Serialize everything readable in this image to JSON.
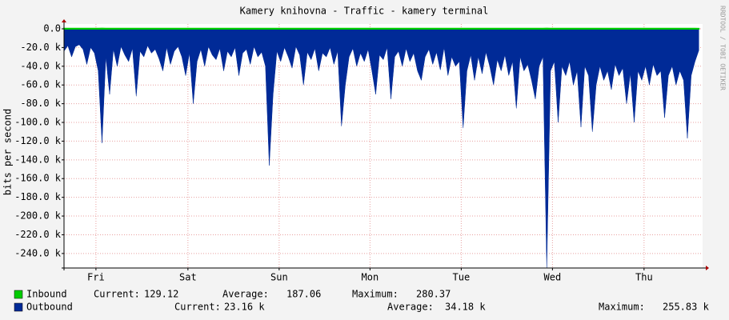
{
  "chart_data": {
    "type": "area",
    "title": "Kamery knihovna - Traffic - kamery terminal",
    "y_label": "bits per second",
    "watermark": "RRDTOOL / TOBI OETIKER",
    "xlim": [
      0,
      168
    ],
    "xticks": [
      {
        "value": 8.4,
        "label": "Fri"
      },
      {
        "value": 32.6,
        "label": "Sat"
      },
      {
        "value": 56.6,
        "label": "Sun"
      },
      {
        "value": 80.5,
        "label": "Mon"
      },
      {
        "value": 104.5,
        "label": "Tue"
      },
      {
        "value": 128.5,
        "label": "Wed"
      },
      {
        "value": 152.6,
        "label": "Thu"
      }
    ],
    "ylim": [
      -255500,
      0
    ],
    "yticks": [
      {
        "value": 0,
        "label": "0.0"
      },
      {
        "value": -20000,
        "label": "-20.0 k"
      },
      {
        "value": -40000,
        "label": "-40.0 k"
      },
      {
        "value": -60000,
        "label": "-60.0 k"
      },
      {
        "value": -80000,
        "label": "-80.0 k"
      },
      {
        "value": -100000,
        "label": "-100.0 k"
      },
      {
        "value": -120000,
        "label": "-120.0 k"
      },
      {
        "value": -140000,
        "label": "-140.0 k"
      },
      {
        "value": -160000,
        "label": "-160.0 k"
      },
      {
        "value": -180000,
        "label": "-180.0 k"
      },
      {
        "value": -200000,
        "label": "-200.0 k"
      },
      {
        "value": -220000,
        "label": "-220.0 k"
      },
      {
        "value": -240000,
        "label": "-240.0 k"
      }
    ],
    "grid": true,
    "x": [
      0,
      1,
      2,
      3,
      4,
      5,
      6,
      7,
      8,
      9,
      10,
      11,
      12,
      13,
      14,
      15,
      16,
      17,
      18,
      19,
      20,
      21,
      22,
      23,
      24,
      25,
      26,
      27,
      28,
      29,
      30,
      31,
      32,
      33,
      34,
      35,
      36,
      37,
      38,
      39,
      40,
      41,
      42,
      43,
      44,
      45,
      46,
      47,
      48,
      49,
      50,
      51,
      52,
      53,
      54,
      55,
      56,
      57,
      58,
      59,
      60,
      61,
      62,
      63,
      64,
      65,
      66,
      67,
      68,
      69,
      70,
      71,
      72,
      73,
      74,
      75,
      76,
      77,
      78,
      79,
      80,
      81,
      82,
      83,
      84,
      85,
      86,
      87,
      88,
      89,
      90,
      91,
      92,
      93,
      94,
      95,
      96,
      97,
      98,
      99,
      100,
      101,
      102,
      103,
      104,
      105,
      106,
      107,
      108,
      109,
      110,
      111,
      112,
      113,
      114,
      115,
      116,
      117,
      118,
      119,
      120,
      121,
      122,
      123,
      124,
      125,
      126,
      127,
      128,
      129,
      130,
      131,
      132,
      133,
      134,
      135,
      136,
      137,
      138,
      139,
      140,
      141,
      142,
      143,
      144,
      145,
      146,
      147,
      148,
      149,
      150,
      151,
      152,
      153,
      154,
      155,
      156,
      157,
      158,
      159,
      160,
      161,
      162,
      163,
      164,
      165,
      166,
      167
    ],
    "series": [
      {
        "name": "Inbound",
        "color": "#00cc00",
        "legend": [
          [
            "Current:",
            "129.12"
          ],
          [
            "Average:",
            "187.06"
          ],
          [
            "Maximum:",
            "280.37"
          ]
        ],
        "values": [
          180,
          190,
          170,
          200,
          185,
          190,
          175,
          210,
          190,
          180,
          280,
          200,
          190,
          185,
          170,
          190,
          200,
          180,
          190,
          210,
          185,
          190,
          180,
          175,
          190,
          200,
          185,
          180,
          190,
          195,
          185,
          180,
          190,
          200,
          220,
          190,
          185,
          180,
          175,
          190,
          185,
          190,
          200,
          185,
          180,
          190,
          210,
          190,
          185,
          180,
          190,
          195,
          185,
          190,
          240,
          200,
          190,
          185,
          180,
          175,
          190,
          185,
          190,
          200,
          185,
          180,
          190,
          185,
          180,
          190,
          195,
          185,
          180,
          230,
          190,
          185,
          180,
          190,
          200,
          185,
          180,
          190,
          210,
          185,
          180,
          190,
          215,
          185,
          180,
          190,
          185,
          190,
          180,
          185,
          200,
          190,
          180,
          185,
          190,
          185,
          180,
          190,
          185,
          190,
          180,
          230,
          190,
          185,
          180,
          190,
          185,
          190,
          185,
          205,
          190,
          185,
          180,
          190,
          185,
          210,
          180,
          190,
          185,
          190,
          215,
          185,
          180,
          270,
          190,
          185,
          230,
          190,
          185,
          180,
          190,
          185,
          235,
          190,
          185,
          240,
          200,
          190,
          185,
          180,
          190,
          185,
          190,
          185,
          215,
          190,
          225,
          185,
          180,
          190,
          185,
          190,
          185,
          180,
          220,
          190,
          185,
          180,
          190,
          185,
          240,
          190,
          185,
          129.12
        ]
      },
      {
        "name": "Outbound",
        "color": "#002a97",
        "legend": [
          [
            "Current:",
            "23.16 k"
          ],
          [
            "Average:",
            "34.18 k"
          ],
          [
            "Maximum:",
            "255.83 k"
          ]
        ],
        "values": [
          -24000,
          -18000,
          -30000,
          -19000,
          -17000,
          -22000,
          -38000,
          -20000,
          -26000,
          -45000,
          -122000,
          -30000,
          -70000,
          -22000,
          -40000,
          -19000,
          -28000,
          -35000,
          -21000,
          -72000,
          -24000,
          -30000,
          -18000,
          -26000,
          -22000,
          -32000,
          -45000,
          -20000,
          -38000,
          -24000,
          -19000,
          -30000,
          -50000,
          -26000,
          -80000,
          -35000,
          -22000,
          -40000,
          -19000,
          -28000,
          -33000,
          -21000,
          -45000,
          -24000,
          -30000,
          -20000,
          -50000,
          -26000,
          -22000,
          -38000,
          -19000,
          -30000,
          -25000,
          -40000,
          -146000,
          -70000,
          -24000,
          -35000,
          -20000,
          -30000,
          -42000,
          -19000,
          -28000,
          -60000,
          -25000,
          -33000,
          -21000,
          -45000,
          -26000,
          -30000,
          -20000,
          -38000,
          -24000,
          -104000,
          -60000,
          -30000,
          -21000,
          -40000,
          -26000,
          -35000,
          -22000,
          -45000,
          -70000,
          -28000,
          -33000,
          -20000,
          -75000,
          -30000,
          -24000,
          -40000,
          -21000,
          -35000,
          -26000,
          -45000,
          -55000,
          -30000,
          -22000,
          -38000,
          -25000,
          -44000,
          -20000,
          -50000,
          -30000,
          -40000,
          -35000,
          -106000,
          -45000,
          -28000,
          -55000,
          -30000,
          -48000,
          -25000,
          -40000,
          -60000,
          -33000,
          -45000,
          -28000,
          -50000,
          -35000,
          -85000,
          -30000,
          -45000,
          -38000,
          -55000,
          -75000,
          -40000,
          -30000,
          -255830,
          -45000,
          -35000,
          -100000,
          -40000,
          -50000,
          -35000,
          -60000,
          -45000,
          -105000,
          -40000,
          -50000,
          -110000,
          -60000,
          -40000,
          -55000,
          -45000,
          -65000,
          -38000,
          -50000,
          -42000,
          -80000,
          -48000,
          -100000,
          -45000,
          -55000,
          -40000,
          -60000,
          -38000,
          -50000,
          -45000,
          -95000,
          -50000,
          -40000,
          -60000,
          -45000,
          -55000,
          -117000,
          -50000,
          -35000,
          -23160
        ]
      }
    ]
  }
}
